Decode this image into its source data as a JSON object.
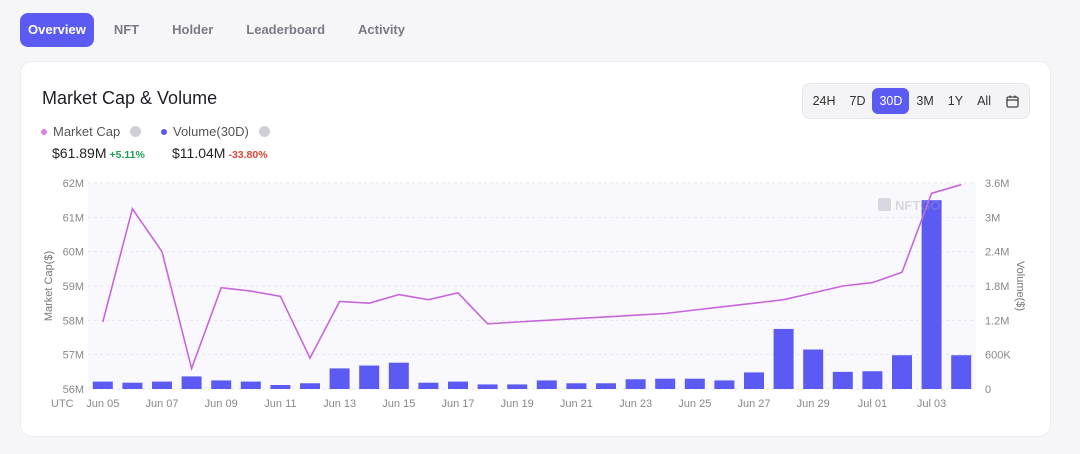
{
  "tabs": [
    "Overview",
    "NFT",
    "Holder",
    "Leaderboard",
    "Activity"
  ],
  "card": {
    "title": "Market Cap & Volume"
  },
  "ranges": [
    "24H",
    "7D",
    "30D",
    "3M",
    "1Y",
    "All"
  ],
  "active_range": "30D",
  "legend": {
    "market_cap": {
      "label": "Market Cap",
      "value": "$61.89M",
      "change": "+5.11%",
      "color": "#d884e0"
    },
    "volume": {
      "label": "Volume(30D)",
      "value": "$11.04M",
      "change": "-33.80%",
      "color": "#5b5bf4"
    }
  },
  "watermark": "NFTGO",
  "chart_data": {
    "type": "bar",
    "timezone_label": "UTC",
    "x": [
      "Jun 05",
      "Jun 06",
      "Jun 07",
      "Jun 08",
      "Jun 09",
      "Jun 10",
      "Jun 11",
      "Jun 12",
      "Jun 13",
      "Jun 14",
      "Jun 15",
      "Jun 16",
      "Jun 17",
      "Jun 18",
      "Jun 19",
      "Jun 20",
      "Jun 21",
      "Jun 22",
      "Jun 23",
      "Jun 24",
      "Jun 25",
      "Jun 26",
      "Jun 27",
      "Jun 28",
      "Jun 29",
      "Jun 30",
      "Jul 01",
      "Jul 02",
      "Jul 03",
      "Jul 04"
    ],
    "x_tick_labels": [
      "Jun 05",
      "Jun 07",
      "Jun 09",
      "Jun 11",
      "Jun 13",
      "Jun 15",
      "Jun 17",
      "Jun 19",
      "Jun 21",
      "Jun 23",
      "Jun 25",
      "Jun 27",
      "Jun 29",
      "Jul 01",
      "Jul 03"
    ],
    "series": [
      {
        "name": "Volume(30D)",
        "type": "bar",
        "axis": "right",
        "values": [
          130000,
          110000,
          130000,
          220000,
          150000,
          130000,
          70000,
          100000,
          360000,
          410000,
          460000,
          110000,
          130000,
          80000,
          80000,
          150000,
          100000,
          100000,
          170000,
          180000,
          180000,
          150000,
          290000,
          1050000,
          690000,
          300000,
          310000,
          590000,
          3300000,
          590000
        ]
      },
      {
        "name": "Market Cap",
        "type": "line",
        "axis": "left",
        "values": [
          57.95,
          61.25,
          60.0,
          56.6,
          58.95,
          58.85,
          58.7,
          56.9,
          58.55,
          58.5,
          58.75,
          58.6,
          58.8,
          57.9,
          57.95,
          58.0,
          58.05,
          58.1,
          58.15,
          58.2,
          58.3,
          58.4,
          58.5,
          58.6,
          58.8,
          59.0,
          59.1,
          59.4,
          61.7,
          61.95
        ]
      }
    ],
    "ylabel_left": "Market Cap($)",
    "ylabel_right": "Volume($)",
    "ylim_left": [
      56,
      62
    ],
    "ylim_right": [
      0,
      3600000
    ],
    "left_ticks": [
      "56M",
      "57M",
      "58M",
      "59M",
      "60M",
      "61M",
      "62M"
    ],
    "right_ticks": [
      "0",
      "600K",
      "1.2M",
      "1.8M",
      "2.4M",
      "3M",
      "3.6M"
    ]
  }
}
